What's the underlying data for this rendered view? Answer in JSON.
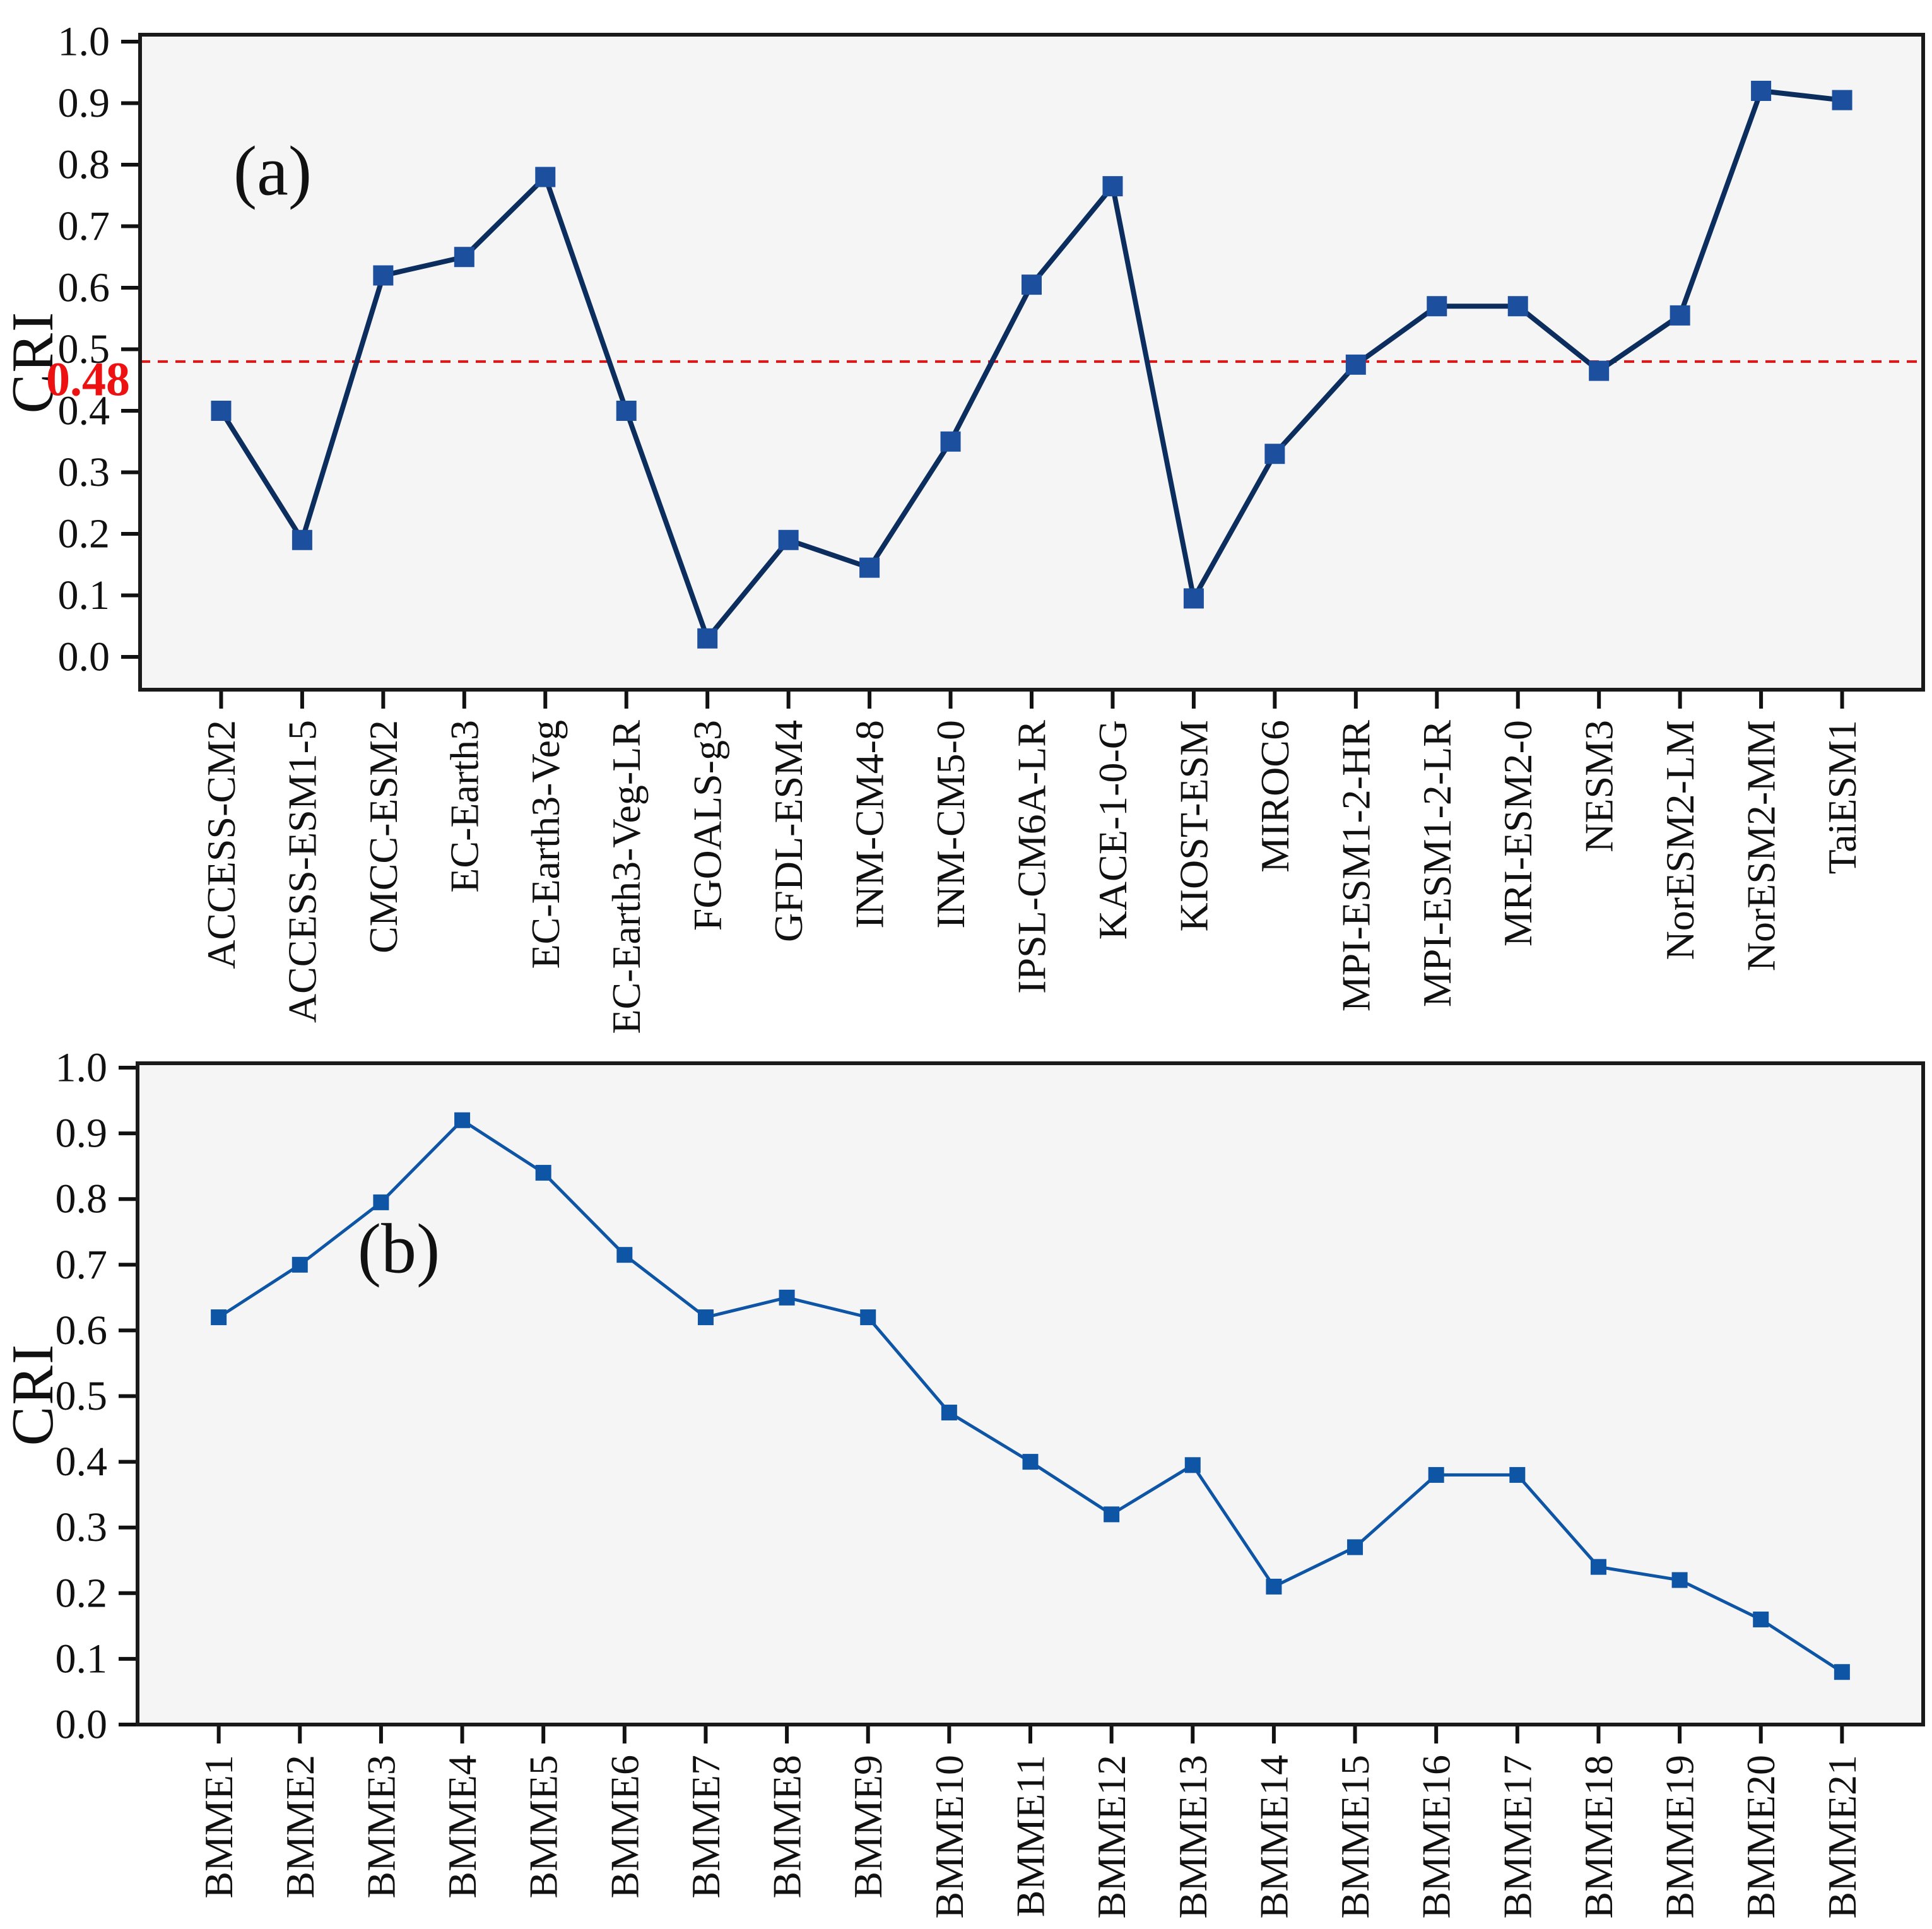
{
  "figure": {
    "plot_bg": "#f5f5f6",
    "border_color": "#1a1a1a",
    "tick_color": "#111111",
    "text_color": "#111111",
    "grid": false,
    "legend": false
  },
  "chart_data": [
    {
      "type": "line",
      "panel_label": "(a)",
      "ylabel": "CRI",
      "xlabel": "",
      "ylim": [
        0.0,
        1.0
      ],
      "y_ticks": [
        "0.0",
        "0.1",
        "0.2",
        "0.3",
        "0.4",
        "0.5",
        "0.6",
        "0.7",
        "0.8",
        "0.9",
        "1.0"
      ],
      "ref_line": {
        "value": 0.48,
        "label": "0.48",
        "color": "#ee1111"
      },
      "categories": [
        "ACCESS-CM2",
        "ACCESS-ESM1-5",
        "CMCC-ESM2",
        "EC-Earth3",
        "EC-Earth3-Veg",
        "EC-Earth3-Veg-LR",
        "FGOALS-g3",
        "GFDL-ESM4",
        "INM-CM4-8",
        "INM-CM5-0",
        "IPSL-CM6A-LR",
        "KACE-1-0-G",
        "KIOST-ESM",
        "MIROC6",
        "MPI-ESM1-2-HR",
        "MPI-ESM1-2-LR",
        "MRI-ESM2-0",
        "NESM3",
        "NorESM2-LM",
        "NorESM2-MM",
        "TaiESM1"
      ],
      "values": [
        0.4,
        0.19,
        0.62,
        0.65,
        0.78,
        0.4,
        0.03,
        0.19,
        0.145,
        0.35,
        0.605,
        0.765,
        0.095,
        0.33,
        0.475,
        0.57,
        0.57,
        0.465,
        0.555,
        0.92,
        0.905
      ],
      "line_color": "#0c2e5e",
      "marker_color": "#1d4f9f",
      "marker": "square",
      "line_width": 8,
      "marker_size": 32
    },
    {
      "type": "line",
      "panel_label": "(b)",
      "ylabel": "CRI",
      "xlabel": "",
      "ylim": [
        0.0,
        1.0
      ],
      "y_ticks": [
        "0.0",
        "0.1",
        "0.2",
        "0.3",
        "0.4",
        "0.5",
        "0.6",
        "0.7",
        "0.8",
        "0.9",
        "1.0"
      ],
      "ref_line": null,
      "categories": [
        "BMME1",
        "BMME2",
        "BMME3",
        "BMME4",
        "BMME5",
        "BMME6",
        "BMME7",
        "BMME8",
        "BMME9",
        "BMME10",
        "BMME11",
        "BMME12",
        "BMME13",
        "BMME14",
        "BMME15",
        "BMME16",
        "BMME17",
        "BMME18",
        "BMME19",
        "BMME20",
        "BMME21"
      ],
      "values": [
        0.62,
        0.7,
        0.795,
        0.92,
        0.84,
        0.715,
        0.62,
        0.65,
        0.62,
        0.475,
        0.4,
        0.32,
        0.395,
        0.21,
        0.27,
        0.38,
        0.38,
        0.24,
        0.22,
        0.16,
        0.08
      ],
      "line_color": "#0e55a6",
      "marker_color": "#0e55a6",
      "marker": "square",
      "line_width": 5,
      "marker_size": 25
    }
  ]
}
